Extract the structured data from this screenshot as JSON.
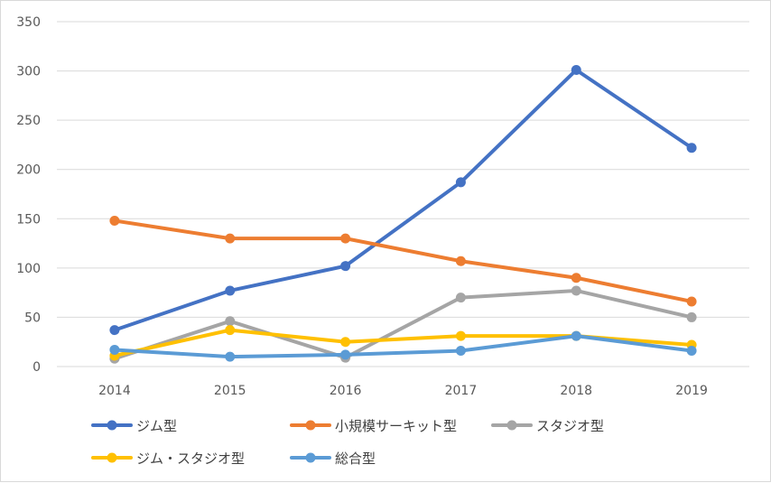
{
  "chart_data": {
    "type": "line",
    "title": "",
    "xlabel": "",
    "ylabel": "",
    "categories": [
      "2014",
      "2015",
      "2016",
      "2017",
      "2018",
      "2019"
    ],
    "ylim": [
      0,
      350
    ],
    "yticks": [
      0,
      50,
      100,
      150,
      200,
      250,
      300,
      350
    ],
    "grid": true,
    "legend_position": "bottom",
    "series": [
      {
        "name": "ジム型",
        "color": "#4472C4",
        "values": [
          37,
          77,
          102,
          187,
          301,
          222
        ]
      },
      {
        "name": "小規模サーキット型",
        "color": "#ED7D31",
        "values": [
          148,
          130,
          130,
          107,
          90,
          66
        ]
      },
      {
        "name": "スタジオ型",
        "color": "#A5A5A5",
        "values": [
          8,
          46,
          9,
          70,
          77,
          50
        ]
      },
      {
        "name": "ジム・スタジオ型",
        "color": "#FFC000",
        "values": [
          11,
          37,
          25,
          31,
          31,
          22
        ]
      },
      {
        "name": "総合型",
        "color": "#5B9BD5",
        "values": [
          17,
          10,
          12,
          16,
          31,
          16
        ]
      }
    ]
  }
}
